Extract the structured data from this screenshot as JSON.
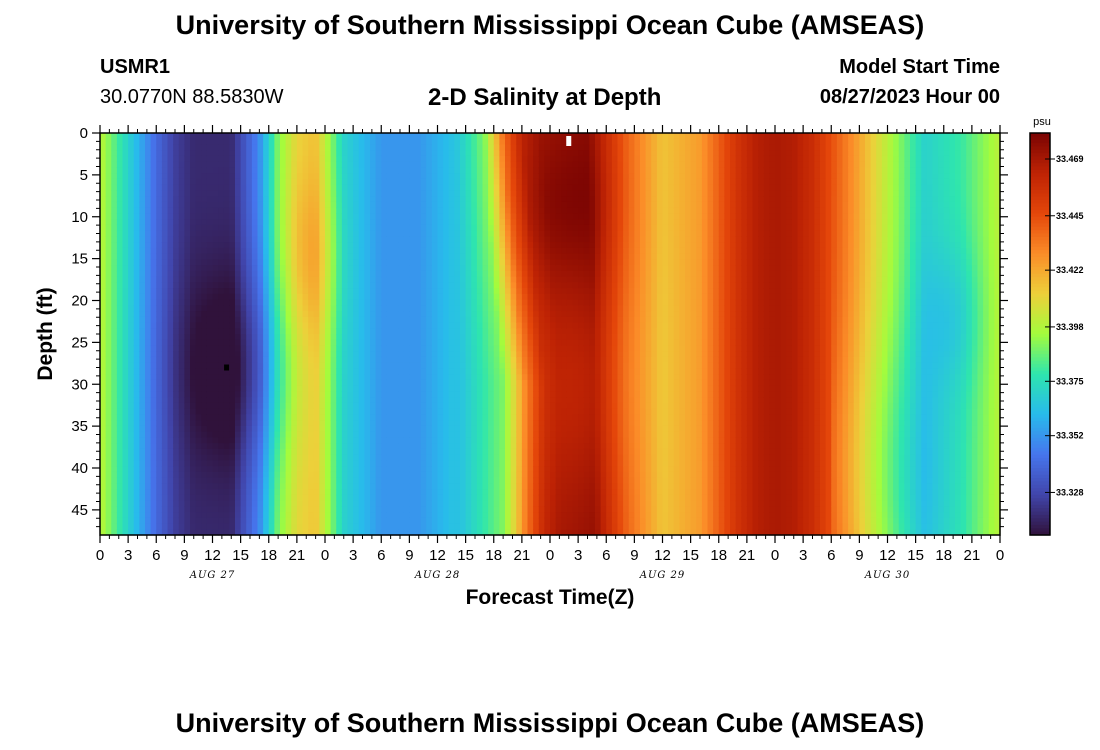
{
  "header": {
    "title": "University of Southern Mississippi Ocean Cube (AMSEAS)",
    "station_id": "USMR1",
    "station_coords": "30.0770N  88.5830W",
    "chart_title": "2-D Salinity at Depth",
    "model_start_label": "Model Start Time",
    "model_start_value": "08/27/2023 Hour 00"
  },
  "footer": {
    "title": "University of Southern Mississippi Ocean Cube (AMSEAS)"
  },
  "chart_data": {
    "type": "heatmap",
    "title": "2-D Salinity at Depth",
    "xlabel": "Forecast Time(Z)",
    "ylabel": "Depth (ft)",
    "x_unit": "forecast hour",
    "xlim": [
      0,
      96
    ],
    "ylim": [
      48,
      0
    ],
    "x_tick_labels": [
      "0",
      "3",
      "6",
      "9",
      "12",
      "15",
      "18",
      "21",
      "0",
      "3",
      "6",
      "9",
      "12",
      "15",
      "18",
      "21",
      "0",
      "3",
      "6",
      "9",
      "12",
      "15",
      "18",
      "21",
      "0",
      "3",
      "6",
      "9",
      "12",
      "15",
      "18",
      "21",
      "0"
    ],
    "y_ticks": [
      0,
      5,
      10,
      15,
      20,
      25,
      30,
      35,
      40,
      45
    ],
    "day_labels": [
      {
        "text": "AUG 27",
        "hour": 12
      },
      {
        "text": "AUG 28",
        "hour": 36
      },
      {
        "text": "AUG 29",
        "hour": 60
      },
      {
        "text": "AUG 30",
        "hour": 84
      }
    ],
    "colorbar": {
      "unit": "psu",
      "range": [
        33.31,
        33.48
      ],
      "tick_values": [
        33.328,
        33.352,
        33.375,
        33.398,
        33.422,
        33.445,
        33.469
      ],
      "tick_labels": [
        "33.328",
        "33.352",
        "33.375",
        "33.398",
        "33.422",
        "33.445",
        "33.469"
      ]
    },
    "surface_profile_psu": {
      "hours": [
        0,
        3,
        6,
        8,
        10,
        14,
        17,
        19,
        21,
        23,
        24,
        26,
        30,
        34,
        38,
        41,
        43,
        45,
        47,
        52,
        56,
        60,
        64,
        68,
        70,
        72,
        74,
        76,
        80,
        84,
        88,
        92,
        96
      ],
      "values": [
        33.4,
        33.37,
        33.34,
        33.325,
        33.318,
        33.318,
        33.35,
        33.39,
        33.41,
        33.415,
        33.4,
        33.37,
        33.352,
        33.352,
        33.365,
        33.39,
        33.435,
        33.462,
        33.47,
        33.475,
        33.44,
        33.415,
        33.425,
        33.455,
        33.465,
        33.468,
        33.466,
        33.458,
        33.43,
        33.4,
        33.37,
        33.38,
        33.4
      ]
    },
    "markers": [
      {
        "type": "minimum",
        "hour": 13.5,
        "depth_ft": 28
      },
      {
        "type": "maximum",
        "hour": 50,
        "depth_ft": 0.5
      }
    ]
  }
}
